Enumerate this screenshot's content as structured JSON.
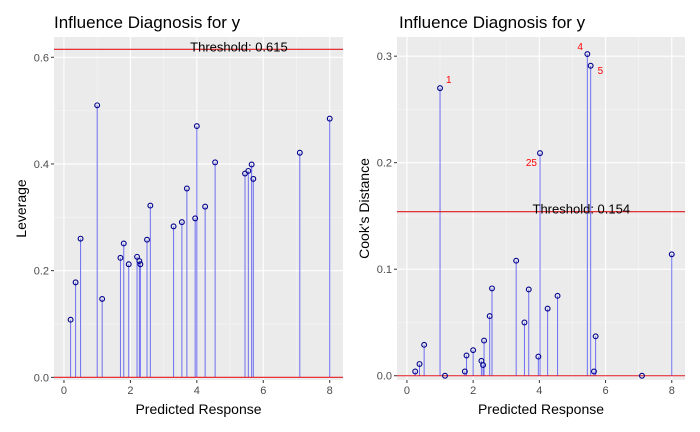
{
  "colors": {
    "panel": "#ebebeb",
    "grid_major": "#ffffff",
    "grid_minor": "#f5f5f5",
    "stem": "#6e6ef0",
    "point_outline": "#00008b",
    "threshold": "#e0191e",
    "zero_line": "#e0191e",
    "label": "#ff0000"
  },
  "chart_data": [
    {
      "type": "scatter",
      "title": "Influence Diagnosis for y",
      "xlabel": "Predicted Response",
      "ylabel": "Leverage",
      "xlim": [
        -0.3,
        8.4
      ],
      "ylim": [
        -0.005,
        0.638
      ],
      "xticks": [
        0,
        2,
        4,
        6,
        8
      ],
      "xtick_labels": [
        "0",
        "2",
        "4",
        "6",
        "8"
      ],
      "yticks": [
        0.0,
        0.2,
        0.4,
        0.6
      ],
      "ytick_labels": [
        "0.0",
        "0.2",
        "0.4",
        "0.6"
      ],
      "grid": true,
      "threshold": 0.615,
      "threshold_label": "Threshold: 0.615",
      "points": [
        {
          "x": 0.2,
          "y": 0.108
        },
        {
          "x": 0.35,
          "y": 0.178
        },
        {
          "x": 0.5,
          "y": 0.26
        },
        {
          "x": 1.0,
          "y": 0.51
        },
        {
          "x": 1.15,
          "y": 0.147
        },
        {
          "x": 1.7,
          "y": 0.224
        },
        {
          "x": 1.8,
          "y": 0.251
        },
        {
          "x": 1.95,
          "y": 0.212
        },
        {
          "x": 2.2,
          "y": 0.226
        },
        {
          "x": 2.27,
          "y": 0.218
        },
        {
          "x": 2.3,
          "y": 0.212
        },
        {
          "x": 2.5,
          "y": 0.258
        },
        {
          "x": 2.6,
          "y": 0.322
        },
        {
          "x": 3.3,
          "y": 0.283
        },
        {
          "x": 3.55,
          "y": 0.291
        },
        {
          "x": 3.7,
          "y": 0.354
        },
        {
          "x": 3.95,
          "y": 0.298
        },
        {
          "x": 4.0,
          "y": 0.471
        },
        {
          "x": 4.25,
          "y": 0.32
        },
        {
          "x": 4.55,
          "y": 0.403
        },
        {
          "x": 5.45,
          "y": 0.382
        },
        {
          "x": 5.55,
          "y": 0.387
        },
        {
          "x": 5.65,
          "y": 0.399
        },
        {
          "x": 5.7,
          "y": 0.372
        },
        {
          "x": 7.1,
          "y": 0.421
        },
        {
          "x": 8.0,
          "y": 0.485
        }
      ]
    },
    {
      "type": "scatter",
      "title": "Influence Diagnosis for y",
      "xlabel": "Predicted Response",
      "ylabel": "Cook's Distance",
      "xlim": [
        -0.3,
        8.4
      ],
      "ylim": [
        -0.004,
        0.318
      ],
      "xticks": [
        0,
        2,
        4,
        6,
        8
      ],
      "xtick_labels": [
        "0",
        "2",
        "4",
        "6",
        "8"
      ],
      "yticks": [
        0.0,
        0.1,
        0.2,
        0.3
      ],
      "ytick_labels": [
        "0.0",
        "0.1",
        "0.2",
        "0.3"
      ],
      "grid": true,
      "threshold": 0.154,
      "threshold_label": "Threshold: 0.154",
      "points": [
        {
          "x": 0.25,
          "y": 0.004
        },
        {
          "x": 0.38,
          "y": 0.011
        },
        {
          "x": 0.52,
          "y": 0.029
        },
        {
          "x": 1.0,
          "y": 0.27,
          "label": "1"
        },
        {
          "x": 1.15,
          "y": 0.0
        },
        {
          "x": 1.75,
          "y": 0.004
        },
        {
          "x": 1.8,
          "y": 0.019
        },
        {
          "x": 2.0,
          "y": 0.024
        },
        {
          "x": 2.25,
          "y": 0.014
        },
        {
          "x": 2.3,
          "y": 0.01
        },
        {
          "x": 2.33,
          "y": 0.033
        },
        {
          "x": 2.5,
          "y": 0.056
        },
        {
          "x": 2.57,
          "y": 0.082
        },
        {
          "x": 3.3,
          "y": 0.108
        },
        {
          "x": 3.55,
          "y": 0.05
        },
        {
          "x": 3.68,
          "y": 0.081
        },
        {
          "x": 3.97,
          "y": 0.018
        },
        {
          "x": 4.02,
          "y": 0.209,
          "label": "25"
        },
        {
          "x": 4.25,
          "y": 0.063
        },
        {
          "x": 4.55,
          "y": 0.075
        },
        {
          "x": 5.45,
          "y": 0.302,
          "label": "4"
        },
        {
          "x": 5.55,
          "y": 0.291,
          "label": "5"
        },
        {
          "x": 5.65,
          "y": 0.004
        },
        {
          "x": 5.7,
          "y": 0.037
        },
        {
          "x": 7.1,
          "y": 0.0
        },
        {
          "x": 8.0,
          "y": 0.114
        }
      ]
    }
  ]
}
